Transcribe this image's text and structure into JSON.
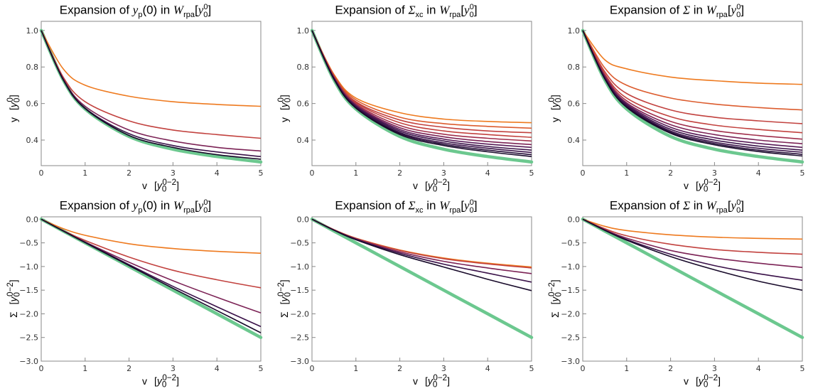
{
  "colors": {
    "reference": "#6cc88f",
    "orders": [
      "#ee7a1f",
      "#dc5c2e",
      "#c2423f",
      "#a02f4c",
      "#7c2356",
      "#571a57",
      "#3a1249",
      "#240b37",
      "#180a2a"
    ],
    "axes": "#888888",
    "text": "#000000"
  },
  "chart_data": [
    {
      "type": "line",
      "title": {
        "pre": "Expansion of ",
        "sym": "y",
        "symsub": "p",
        "mid": "(0) in ",
        "w": "W",
        "wsub": "rpa",
        "br": "[",
        "y0": "y",
        "y0sub": "0",
        "y0sup": "0",
        "end": "]"
      },
      "xlabel": "v",
      "xunit": {
        "base": "y",
        "sub": "0",
        "sup": "0−2"
      },
      "ylabel": "y",
      "yunit": {
        "base": "y",
        "sub": "0",
        "sup": "0"
      },
      "xlim": [
        0,
        5
      ],
      "ylim": [
        0.26,
        1.05
      ],
      "xticks": [
        "0",
        "1",
        "2",
        "3",
        "4",
        "5"
      ],
      "yticks": [
        {
          "v": 0.4,
          "t": "0.4"
        },
        {
          "v": 0.6,
          "t": "0.6"
        },
        {
          "v": 0.8,
          "t": "0.8"
        },
        {
          "v": 1.0,
          "t": "1.0"
        }
      ],
      "x": [
        0,
        0.5,
        1,
        2,
        3,
        4,
        5
      ],
      "reference": [
        1.0,
        0.73,
        0.57,
        0.42,
        0.35,
        0.31,
        0.28
      ],
      "series": [
        [
          1.0,
          0.79,
          0.7,
          0.64,
          0.61,
          0.595,
          0.585
        ],
        [
          1.0,
          0.745,
          0.61,
          0.505,
          0.455,
          0.43,
          0.41
        ],
        [
          1.0,
          0.735,
          0.585,
          0.455,
          0.395,
          0.36,
          0.34
        ],
        [
          1.0,
          0.732,
          0.575,
          0.435,
          0.37,
          0.335,
          0.31
        ],
        [
          1.0,
          0.73,
          0.572,
          0.425,
          0.36,
          0.32,
          0.295
        ]
      ]
    },
    {
      "type": "line",
      "title": {
        "pre": "Expansion of ",
        "sym": "Σ",
        "symsub": "xc",
        "mid": " in ",
        "w": "W",
        "wsub": "rpa",
        "br": "[",
        "y0": "y",
        "y0sub": "0",
        "y0sup": "0",
        "end": "]"
      },
      "xlabel": "v",
      "xunit": {
        "base": "y",
        "sub": "0",
        "sup": "0−2"
      },
      "ylabel": "y",
      "yunit": {
        "base": "y",
        "sub": "0",
        "sup": "0"
      },
      "xlim": [
        0,
        5
      ],
      "ylim": [
        0.26,
        1.05
      ],
      "xticks": [
        "0",
        "1",
        "2",
        "3",
        "4",
        "5"
      ],
      "yticks": [
        {
          "v": 0.4,
          "t": "0.4"
        },
        {
          "v": 0.6,
          "t": "0.6"
        },
        {
          "v": 0.8,
          "t": "0.8"
        },
        {
          "v": 1.0,
          "t": "1.0"
        }
      ],
      "x": [
        0,
        0.5,
        1,
        2,
        3,
        4,
        5
      ],
      "reference": [
        1.0,
        0.73,
        0.57,
        0.42,
        0.35,
        0.31,
        0.28
      ],
      "series": [
        [
          1.0,
          0.76,
          0.63,
          0.55,
          0.515,
          0.502,
          0.495
        ],
        [
          1.0,
          0.755,
          0.62,
          0.525,
          0.49,
          0.475,
          0.465
        ],
        [
          1.0,
          0.75,
          0.61,
          0.51,
          0.47,
          0.45,
          0.44
        ],
        [
          1.0,
          0.748,
          0.605,
          0.495,
          0.45,
          0.43,
          0.415
        ],
        [
          1.0,
          0.745,
          0.598,
          0.48,
          0.432,
          0.41,
          0.395
        ],
        [
          1.0,
          0.742,
          0.592,
          0.468,
          0.418,
          0.392,
          0.375
        ],
        [
          1.0,
          0.74,
          0.588,
          0.458,
          0.405,
          0.378,
          0.36
        ],
        [
          1.0,
          0.738,
          0.584,
          0.45,
          0.395,
          0.365,
          0.345
        ],
        [
          1.0,
          0.736,
          0.58,
          0.442,
          0.385,
          0.355,
          0.332
        ],
        [
          1.0,
          0.734,
          0.577,
          0.436,
          0.377,
          0.345,
          0.32
        ],
        [
          1.0,
          0.733,
          0.575,
          0.43,
          0.37,
          0.336,
          0.31
        ]
      ]
    },
    {
      "type": "line",
      "title": {
        "pre": "Expansion of ",
        "sym": "Σ",
        "symsub": "",
        "mid": " in ",
        "w": "W",
        "wsub": "rpa",
        "br": "[",
        "y0": "y",
        "y0sub": "0",
        "y0sup": "0",
        "end": "]"
      },
      "xlabel": "v",
      "xunit": {
        "base": "y",
        "sub": "0",
        "sup": "0−2"
      },
      "ylabel": "y",
      "yunit": {
        "base": "y",
        "sub": "0",
        "sup": "0"
      },
      "xlim": [
        0,
        5
      ],
      "ylim": [
        0.26,
        1.05
      ],
      "xticks": [
        "0",
        "1",
        "2",
        "3",
        "4",
        "5"
      ],
      "yticks": [
        {
          "v": 0.4,
          "t": "0.4"
        },
        {
          "v": 0.6,
          "t": "0.6"
        },
        {
          "v": 0.8,
          "t": "0.8"
        },
        {
          "v": 1.0,
          "t": "1.0"
        }
      ],
      "x": [
        0,
        0.5,
        1,
        2,
        3,
        4,
        5
      ],
      "reference": [
        1.0,
        0.73,
        0.57,
        0.42,
        0.35,
        0.31,
        0.28
      ],
      "series": [
        [
          1.0,
          0.84,
          0.79,
          0.745,
          0.725,
          0.712,
          0.705
        ],
        [
          1.0,
          0.795,
          0.7,
          0.63,
          0.597,
          0.578,
          0.565
        ],
        [
          1.0,
          0.775,
          0.655,
          0.565,
          0.525,
          0.505,
          0.49
        ],
        [
          1.0,
          0.763,
          0.63,
          0.528,
          0.482,
          0.458,
          0.44
        ],
        [
          1.0,
          0.755,
          0.615,
          0.502,
          0.452,
          0.425,
          0.405
        ],
        [
          1.0,
          0.749,
          0.604,
          0.484,
          0.43,
          0.4,
          0.38
        ],
        [
          1.0,
          0.745,
          0.597,
          0.47,
          0.413,
          0.382,
          0.36
        ],
        [
          1.0,
          0.742,
          0.591,
          0.459,
          0.4,
          0.367,
          0.345
        ],
        [
          1.0,
          0.739,
          0.586,
          0.45,
          0.389,
          0.355,
          0.333
        ],
        [
          1.0,
          0.737,
          0.582,
          0.443,
          0.381,
          0.345,
          0.322
        ],
        [
          1.0,
          0.735,
          0.579,
          0.437,
          0.374,
          0.337,
          0.313
        ]
      ]
    },
    {
      "type": "line",
      "title": {
        "pre": "Expansion of ",
        "sym": "y",
        "symsub": "p",
        "mid": "(0) in ",
        "w": "W",
        "wsub": "rpa",
        "br": "[",
        "y0": "y",
        "y0sub": "0",
        "y0sup": "0",
        "end": "]"
      },
      "xlabel": "v",
      "xunit": {
        "base": "y",
        "sub": "0",
        "sup": "0−2"
      },
      "ylabel": "Σ",
      "yunit": {
        "base": "y",
        "sub": "0",
        "sup": "0−2"
      },
      "xlim": [
        0,
        5
      ],
      "ylim": [
        -3.0,
        0.05
      ],
      "xticks": [
        "0",
        "1",
        "2",
        "3",
        "4",
        "5"
      ],
      "yticks": [
        {
          "v": -3.0,
          "t": "−3.0"
        },
        {
          "v": -2.5,
          "t": "−2.5"
        },
        {
          "v": -2.0,
          "t": "−2.0"
        },
        {
          "v": -1.5,
          "t": "−1.5"
        },
        {
          "v": -1.0,
          "t": "−1.0"
        },
        {
          "v": -0.5,
          "t": "−0.5"
        },
        {
          "v": 0.0,
          "t": "0.0"
        }
      ],
      "x": [
        0,
        0.5,
        1,
        2,
        3,
        4,
        5
      ],
      "reference": [
        0,
        -0.25,
        -0.5,
        -1.0,
        -1.5,
        -2.0,
        -2.5
      ],
      "series": [
        [
          0,
          -0.2,
          -0.34,
          -0.52,
          -0.62,
          -0.68,
          -0.72
        ],
        [
          0,
          -0.24,
          -0.45,
          -0.8,
          -1.08,
          -1.28,
          -1.45
        ],
        [
          0,
          -0.245,
          -0.48,
          -0.91,
          -1.3,
          -1.65,
          -1.98
        ],
        [
          0,
          -0.248,
          -0.49,
          -0.96,
          -1.42,
          -1.85,
          -2.27
        ],
        [
          0,
          -0.249,
          -0.495,
          -0.98,
          -1.46,
          -1.93,
          -2.4
        ]
      ]
    },
    {
      "type": "line",
      "title": {
        "pre": "Expansion of ",
        "sym": "Σ",
        "symsub": "xc",
        "mid": " in ",
        "w": "W",
        "wsub": "rpa",
        "br": "[",
        "y0": "y",
        "y0sub": "0",
        "y0sup": "0",
        "end": "]"
      },
      "xlabel": "v",
      "xunit": {
        "base": "y",
        "sub": "0",
        "sup": "0−2"
      },
      "ylabel": "Σ",
      "yunit": {
        "base": "y",
        "sub": "0",
        "sup": "0−2"
      },
      "xlim": [
        0,
        5
      ],
      "ylim": [
        -3.0,
        0.05
      ],
      "xticks": [
        "0",
        "1",
        "2",
        "3",
        "4",
        "5"
      ],
      "yticks": [
        {
          "v": -3.0,
          "t": "−3.0"
        },
        {
          "v": -2.5,
          "t": "−2.5"
        },
        {
          "v": -2.0,
          "t": "−2.0"
        },
        {
          "v": -1.5,
          "t": "−1.5"
        },
        {
          "v": -1.0,
          "t": "−1.0"
        },
        {
          "v": -0.5,
          "t": "−0.5"
        },
        {
          "v": 0.0,
          "t": "0.0"
        }
      ],
      "x": [
        0,
        0.5,
        1,
        2,
        3,
        4,
        5
      ],
      "reference": [
        0,
        -0.25,
        -0.5,
        -1.0,
        -1.5,
        -2.0,
        -2.5
      ],
      "series": [
        [
          0,
          -0.22,
          -0.4,
          -0.65,
          -0.82,
          -0.93,
          -1.01
        ],
        [
          0,
          -0.222,
          -0.405,
          -0.66,
          -0.835,
          -0.945,
          -1.03
        ],
        [
          0,
          -0.226,
          -0.415,
          -0.69,
          -0.89,
          -1.03,
          -1.15
        ],
        [
          0,
          -0.23,
          -0.425,
          -0.72,
          -0.95,
          -1.14,
          -1.33
        ],
        [
          0,
          -0.234,
          -0.435,
          -0.75,
          -1.01,
          -1.27,
          -1.51
        ]
      ]
    },
    {
      "type": "line",
      "title": {
        "pre": "Expansion of ",
        "sym": "Σ",
        "symsub": "",
        "mid": " in ",
        "w": "W",
        "wsub": "rpa",
        "br": "[",
        "y0": "y",
        "y0sub": "0",
        "y0sup": "0",
        "end": "]"
      },
      "xlabel": "v",
      "xunit": {
        "base": "y",
        "sub": "0",
        "sup": "0−2"
      },
      "ylabel": "Σ",
      "yunit": {
        "base": "y",
        "sub": "0",
        "sup": "0−2"
      },
      "xlim": [
        0,
        5
      ],
      "ylim": [
        -3.0,
        0.05
      ],
      "xticks": [
        "0",
        "1",
        "2",
        "3",
        "4",
        "5"
      ],
      "yticks": [
        {
          "v": -3.0,
          "t": "−3.0"
        },
        {
          "v": -2.5,
          "t": "−2.5"
        },
        {
          "v": -2.0,
          "t": "−2.0"
        },
        {
          "v": -1.5,
          "t": "−1.5"
        },
        {
          "v": -1.0,
          "t": "−1.0"
        },
        {
          "v": -0.5,
          "t": "−0.5"
        },
        {
          "v": 0.0,
          "t": "0.0"
        }
      ],
      "x": [
        0,
        0.5,
        1,
        2,
        3,
        4,
        5
      ],
      "reference": [
        0,
        -0.25,
        -0.5,
        -1.0,
        -1.5,
        -2.0,
        -2.5
      ],
      "series": [
        [
          0,
          -0.15,
          -0.24,
          -0.33,
          -0.38,
          -0.405,
          -0.42
        ],
        [
          0,
          -0.2,
          -0.35,
          -0.53,
          -0.64,
          -0.7,
          -0.74
        ],
        [
          0,
          -0.22,
          -0.4,
          -0.66,
          -0.82,
          -0.93,
          -1.02
        ],
        [
          0,
          -0.23,
          -0.43,
          -0.74,
          -0.98,
          -1.15,
          -1.29
        ],
        [
          0,
          -0.235,
          -0.445,
          -0.79,
          -1.07,
          -1.31,
          -1.5
        ]
      ]
    }
  ]
}
